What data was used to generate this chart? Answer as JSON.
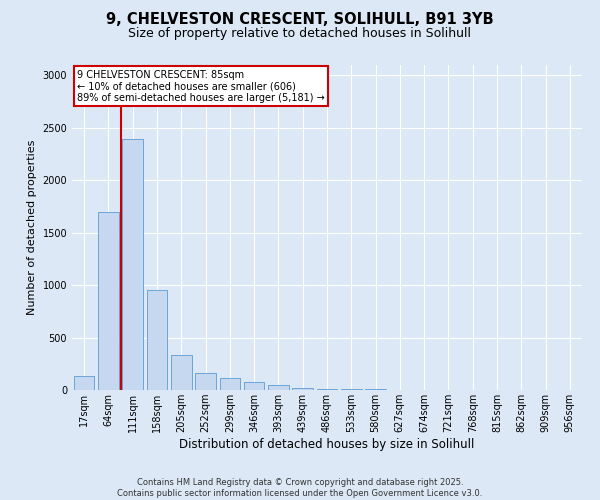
{
  "title_line1": "9, CHELVESTON CRESCENT, SOLIHULL, B91 3YB",
  "title_line2": "Size of property relative to detached houses in Solihull",
  "xlabel": "Distribution of detached houses by size in Solihull",
  "ylabel": "Number of detached properties",
  "footer_line1": "Contains HM Land Registry data © Crown copyright and database right 2025.",
  "footer_line2": "Contains public sector information licensed under the Open Government Licence v3.0.",
  "annotation_line1": "9 CHELVESTON CRESCENT: 85sqm",
  "annotation_line2": "← 10% of detached houses are smaller (606)",
  "annotation_line3": "89% of semi-detached houses are larger (5,181) →",
  "bar_labels": [
    "17sqm",
    "64sqm",
    "111sqm",
    "158sqm",
    "205sqm",
    "252sqm",
    "299sqm",
    "346sqm",
    "393sqm",
    "439sqm",
    "486sqm",
    "533sqm",
    "580sqm",
    "627sqm",
    "674sqm",
    "721sqm",
    "768sqm",
    "815sqm",
    "862sqm",
    "909sqm",
    "956sqm"
  ],
  "bar_values": [
    130,
    1700,
    2390,
    950,
    330,
    165,
    110,
    75,
    45,
    20,
    12,
    8,
    5,
    3,
    2,
    2,
    1,
    1,
    1,
    1,
    1
  ],
  "bar_color": "#c5d8f0",
  "bar_edge_color": "#5b9bd5",
  "red_line_x": 1.5,
  "ylim": [
    0,
    3100
  ],
  "yticks": [
    0,
    500,
    1000,
    1500,
    2000,
    2500,
    3000
  ],
  "background_color": "#dce8f5",
  "plot_background": "#dce8f5",
  "grid_color": "#ffffff",
  "annotation_box_color": "#ffffff",
  "annotation_box_edge": "#cc0000",
  "red_line_color": "#cc0000",
  "title1_fontsize": 10.5,
  "title2_fontsize": 9,
  "xlabel_fontsize": 8.5,
  "ylabel_fontsize": 8,
  "tick_fontsize": 7,
  "annot_fontsize": 7,
  "footer_fontsize": 6
}
